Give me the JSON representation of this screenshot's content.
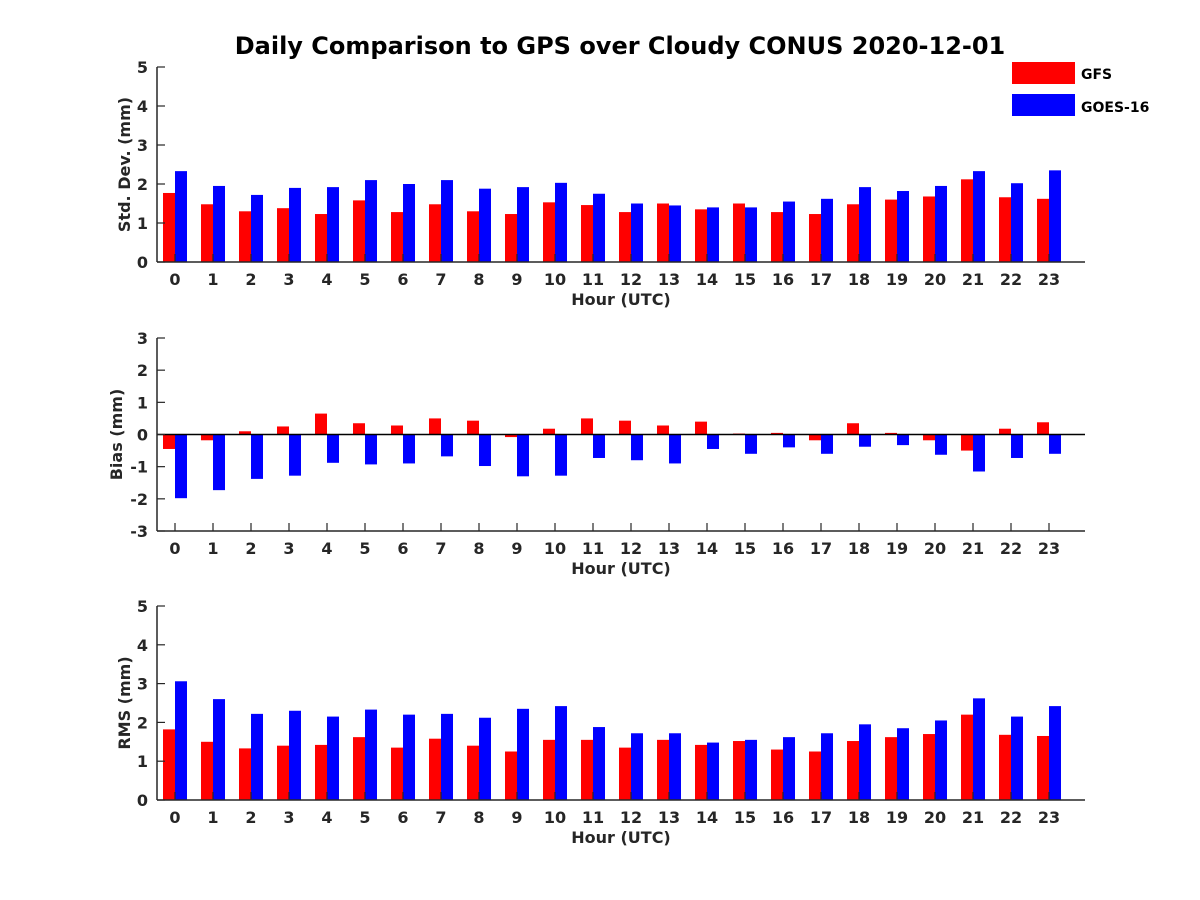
{
  "title": "Daily Comparison to GPS over Cloudy CONUS 2020-12-01",
  "legend": [
    {
      "name": "GFS",
      "color": "#ff0000"
    },
    {
      "name": "GOES-16",
      "color": "#0000ff"
    }
  ],
  "chart_data": [
    {
      "type": "bar",
      "xlabel": "Hour (UTC)",
      "ylabel": "Std. Dev. (mm)",
      "ylim": [
        0,
        5
      ],
      "yticks": [
        0,
        1,
        2,
        3,
        4,
        5
      ],
      "categories": [
        "0",
        "1",
        "2",
        "3",
        "4",
        "5",
        "6",
        "7",
        "8",
        "9",
        "10",
        "11",
        "12",
        "13",
        "14",
        "15",
        "16",
        "17",
        "18",
        "19",
        "20",
        "21",
        "22",
        "23"
      ],
      "series": [
        {
          "name": "GFS",
          "values": [
            1.77,
            1.48,
            1.3,
            1.38,
            1.23,
            1.58,
            1.28,
            1.48,
            1.3,
            1.23,
            1.53,
            1.46,
            1.28,
            1.5,
            1.35,
            1.5,
            1.28,
            1.23,
            1.48,
            1.6,
            1.68,
            2.12,
            1.66,
            1.62
          ]
        },
        {
          "name": "GOES-16",
          "values": [
            2.33,
            1.95,
            1.72,
            1.9,
            1.92,
            2.1,
            2.0,
            2.1,
            1.88,
            1.92,
            2.03,
            1.75,
            1.5,
            1.45,
            1.4,
            1.4,
            1.55,
            1.62,
            1.92,
            1.82,
            1.95,
            2.33,
            2.02,
            2.35
          ]
        }
      ]
    },
    {
      "type": "bar",
      "xlabel": "Hour (UTC)",
      "ylabel": "Bias (mm)",
      "ylim": [
        -3,
        3
      ],
      "yticks": [
        -3,
        -2,
        -1,
        0,
        1,
        2,
        3
      ],
      "categories": [
        "0",
        "1",
        "2",
        "3",
        "4",
        "5",
        "6",
        "7",
        "8",
        "9",
        "10",
        "11",
        "12",
        "13",
        "14",
        "15",
        "16",
        "17",
        "18",
        "19",
        "20",
        "21",
        "22",
        "23"
      ],
      "series": [
        {
          "name": "GFS",
          "values": [
            -0.45,
            -0.18,
            0.1,
            0.25,
            0.65,
            0.35,
            0.28,
            0.5,
            0.43,
            -0.08,
            0.18,
            0.5,
            0.43,
            0.28,
            0.4,
            0.03,
            0.05,
            -0.18,
            0.35,
            0.05,
            -0.18,
            -0.5,
            0.18,
            0.38
          ]
        },
        {
          "name": "GOES-16",
          "values": [
            -1.98,
            -1.73,
            -1.38,
            -1.28,
            -0.88,
            -0.93,
            -0.9,
            -0.68,
            -0.98,
            -1.3,
            -1.28,
            -0.73,
            -0.8,
            -0.9,
            -0.45,
            -0.6,
            -0.4,
            -0.6,
            -0.38,
            -0.33,
            -0.63,
            -1.15,
            -0.73,
            -0.6
          ]
        }
      ]
    },
    {
      "type": "bar",
      "xlabel": "Hour (UTC)",
      "ylabel": "RMS (mm)",
      "ylim": [
        0,
        5
      ],
      "yticks": [
        0,
        1,
        2,
        3,
        4,
        5
      ],
      "categories": [
        "0",
        "1",
        "2",
        "3",
        "4",
        "5",
        "6",
        "7",
        "8",
        "9",
        "10",
        "11",
        "12",
        "13",
        "14",
        "15",
        "16",
        "17",
        "18",
        "19",
        "20",
        "21",
        "22",
        "23"
      ],
      "series": [
        {
          "name": "GFS",
          "values": [
            1.82,
            1.5,
            1.33,
            1.4,
            1.42,
            1.62,
            1.35,
            1.58,
            1.4,
            1.25,
            1.55,
            1.55,
            1.35,
            1.55,
            1.42,
            1.52,
            1.3,
            1.25,
            1.52,
            1.62,
            1.7,
            2.2,
            1.68,
            1.65
          ]
        },
        {
          "name": "GOES-16",
          "values": [
            3.06,
            2.6,
            2.22,
            2.3,
            2.15,
            2.33,
            2.2,
            2.22,
            2.12,
            2.35,
            2.42,
            1.88,
            1.72,
            1.72,
            1.48,
            1.55,
            1.62,
            1.72,
            1.95,
            1.85,
            2.05,
            2.62,
            2.15,
            2.42
          ]
        }
      ]
    }
  ]
}
